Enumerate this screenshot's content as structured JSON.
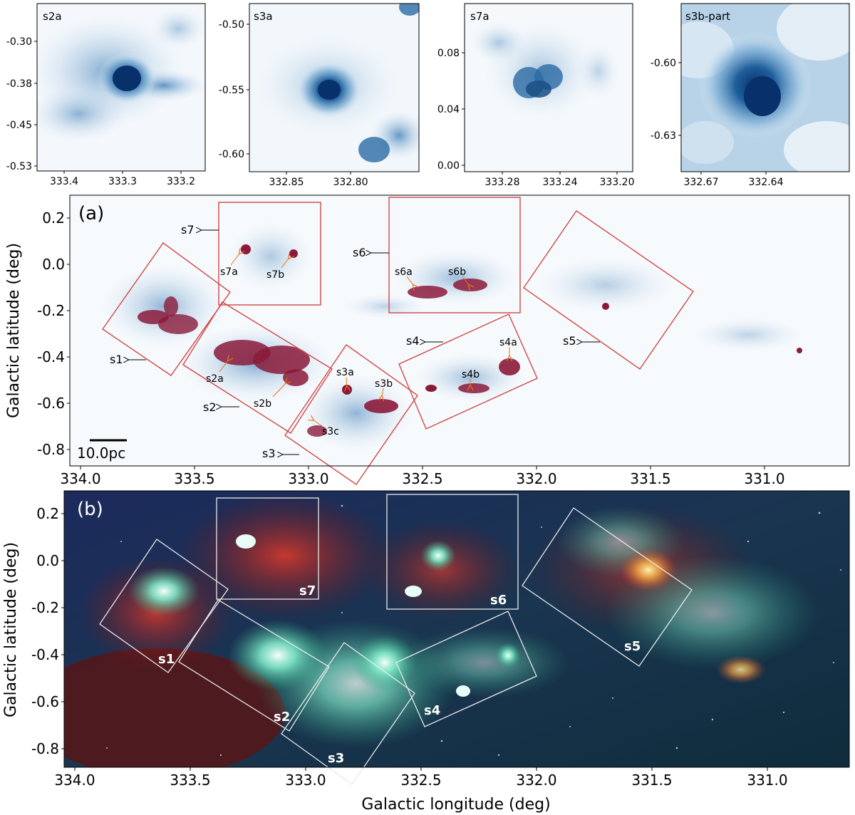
{
  "figure": {
    "panel_a_label": "(a)",
    "panel_b_label": "(b)",
    "y_axis_label": "Galactic latitude (deg)",
    "x_axis_label": "Galactic longitude (deg)",
    "scale_bar_label": "10.0pc"
  },
  "colors": {
    "cloud_blue": "#2f6fa6",
    "dense_core": "#8b1a3a",
    "region_box_a": "#d04848",
    "region_box_b": "#e8e8e8",
    "arrow_orange": "#e8741c"
  },
  "chart_data": [
    {
      "type": "heatmap",
      "panel": "inset",
      "title": "s2a",
      "xticks": [
        "333.4",
        "333.3",
        "333.2"
      ],
      "yticks": [
        "-0.30",
        "-0.38",
        "-0.45",
        "-0.53"
      ]
    },
    {
      "type": "heatmap",
      "panel": "inset",
      "title": "s3a",
      "xticks": [
        "332.85",
        "332.80"
      ],
      "yticks": [
        "-0.50",
        "-0.55",
        "-0.60"
      ]
    },
    {
      "type": "heatmap",
      "panel": "inset",
      "title": "s7a",
      "xticks": [
        "333.28",
        "333.24",
        "333.20"
      ],
      "yticks": [
        "0.08",
        "0.04",
        "0.00"
      ]
    },
    {
      "type": "heatmap",
      "panel": "inset",
      "title": "s3b-part",
      "xticks": [
        "332.67",
        "332.64"
      ],
      "yticks": [
        "-0.60",
        "-0.63"
      ]
    },
    {
      "type": "heatmap",
      "panel": "(a)",
      "xlim": [
        334.05,
        330.65
      ],
      "ylim": [
        -0.88,
        0.28
      ],
      "xticks": [
        "334.0",
        "333.5",
        "333.0",
        "332.5",
        "332.0",
        "331.5",
        "331.0"
      ],
      "yticks": [
        "0.2",
        "0.0",
        "-0.2",
        "-0.4",
        "-0.6",
        "-0.8"
      ],
      "subregions": [
        "s1",
        "s2",
        "s3",
        "s4",
        "s5",
        "s6",
        "s7"
      ],
      "clumps": [
        "s2a",
        "s2b",
        "s3a",
        "s3b",
        "s3c",
        "s4a",
        "s4b",
        "s6a",
        "s6b",
        "s7a",
        "s7b"
      ]
    },
    {
      "type": "heatmap",
      "panel": "(b)",
      "xlim": [
        334.05,
        330.65
      ],
      "ylim": [
        -0.88,
        0.28
      ],
      "xticks": [
        "334.0",
        "333.5",
        "333.0",
        "332.5",
        "332.0",
        "331.5",
        "331.0"
      ],
      "yticks": [
        "0.2",
        "0.0",
        "-0.2",
        "-0.4",
        "-0.6",
        "-0.8"
      ],
      "subregions": [
        "s1",
        "s2",
        "s3",
        "s4",
        "s5",
        "s6",
        "s7"
      ]
    }
  ]
}
